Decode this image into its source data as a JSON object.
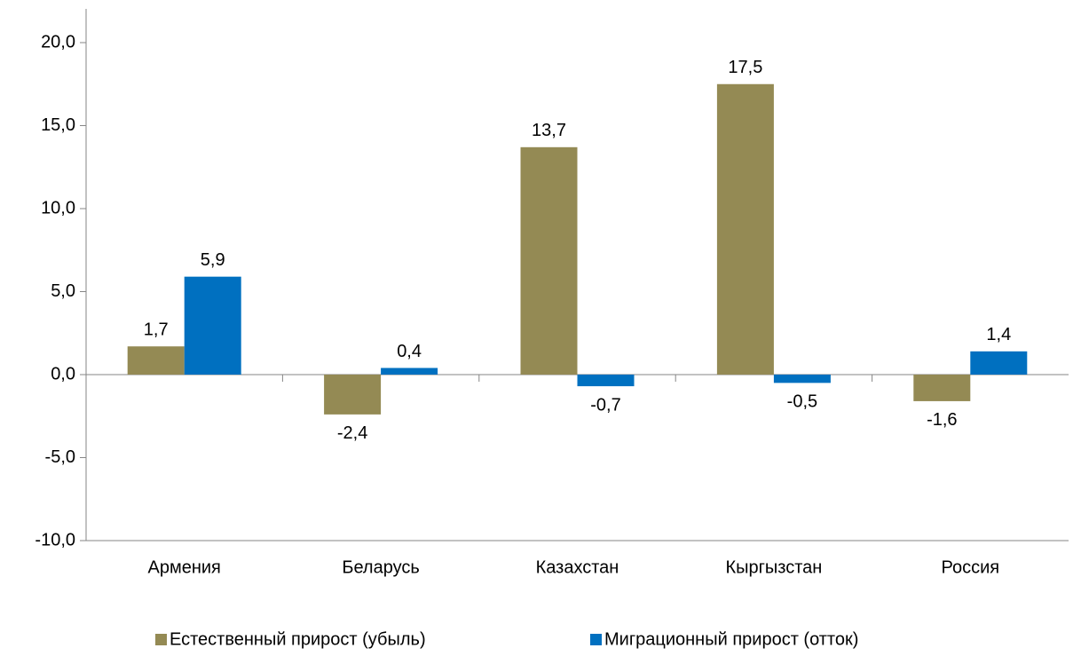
{
  "chart_data": {
    "type": "bar",
    "categories": [
      "Армения",
      "Беларусь",
      "Казахстан",
      "Кыргызстан",
      "Россия"
    ],
    "series": [
      {
        "name": "Естественный прирост (убыль)",
        "color": "#948a54",
        "values": [
          1.7,
          -2.4,
          13.7,
          17.5,
          -1.6
        ],
        "value_labels": [
          "1,7",
          "-2,4",
          "13,7",
          "17,5",
          "-1,6"
        ]
      },
      {
        "name": "Миграционный прирост (отток)",
        "color": "#0070c0",
        "values": [
          5.9,
          0.4,
          -0.7,
          -0.5,
          1.4
        ],
        "value_labels": [
          "5,9",
          "0,4",
          "-0,7",
          "-0,5",
          "1,4"
        ]
      }
    ],
    "ylim": [
      -10,
      20
    ],
    "yticks": [
      {
        "value": -10,
        "label": "-10,0"
      },
      {
        "value": -5,
        "label": "-5,0"
      },
      {
        "value": 0,
        "label": "0,0"
      },
      {
        "value": 5,
        "label": "5,0"
      },
      {
        "value": 10,
        "label": "10,0"
      },
      {
        "value": 15,
        "label": "15,0"
      },
      {
        "value": 20,
        "label": "20,0"
      }
    ],
    "legend": "bottom"
  }
}
